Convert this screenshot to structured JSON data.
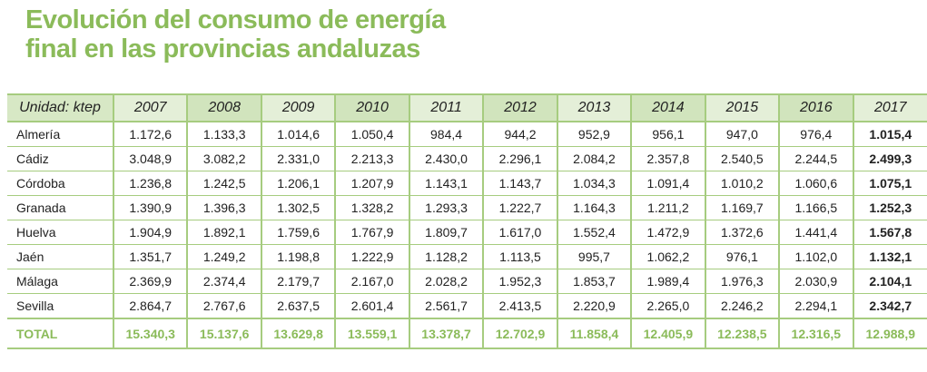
{
  "title_line1": "Evolución del consumo de energía",
  "title_line2": "final en las provincias andaluzas",
  "accent_color": "#8bbb5a",
  "table": {
    "unit_label": "Unidad: ktep",
    "years": [
      "2007",
      "2008",
      "2009",
      "2010",
      "2011",
      "2012",
      "2013",
      "2014",
      "2015",
      "2016",
      "2017"
    ],
    "rows": [
      {
        "name": "Almería",
        "values": [
          "1.172,6",
          "1.133,3",
          "1.014,6",
          "1.050,4",
          "984,4",
          "944,2",
          "952,9",
          "956,1",
          "947,0",
          "976,4",
          "1.015,4"
        ]
      },
      {
        "name": "Cádiz",
        "values": [
          "3.048,9",
          "3.082,2",
          "2.331,0",
          "2.213,3",
          "2.430,0",
          "2.296,1",
          "2.084,2",
          "2.357,8",
          "2.540,5",
          "2.244,5",
          "2.499,3"
        ]
      },
      {
        "name": "Córdoba",
        "values": [
          "1.236,8",
          "1.242,5",
          "1.206,1",
          "1.207,9",
          "1.143,1",
          "1.143,7",
          "1.034,3",
          "1.091,4",
          "1.010,2",
          "1.060,6",
          "1.075,1"
        ]
      },
      {
        "name": "Granada",
        "values": [
          "1.390,9",
          "1.396,3",
          "1.302,5",
          "1.328,2",
          "1.293,3",
          "1.222,7",
          "1.164,3",
          "1.211,2",
          "1.169,7",
          "1.166,5",
          "1.252,3"
        ]
      },
      {
        "name": "Huelva",
        "values": [
          "1.904,9",
          "1.892,1",
          "1.759,6",
          "1.767,9",
          "1.809,7",
          "1.617,0",
          "1.552,4",
          "1.472,9",
          "1.372,6",
          "1.441,4",
          "1.567,8"
        ]
      },
      {
        "name": "Jaén",
        "values": [
          "1.351,7",
          "1.249,2",
          "1.198,8",
          "1.222,9",
          "1.128,2",
          "1.113,5",
          "995,7",
          "1.062,2",
          "976,1",
          "1.102,0",
          "1.132,1"
        ]
      },
      {
        "name": "Málaga",
        "values": [
          "2.369,9",
          "2.374,4",
          "2.179,7",
          "2.167,0",
          "2.028,2",
          "1.952,3",
          "1.853,7",
          "1.989,4",
          "1.976,3",
          "2.030,9",
          "2.104,1"
        ]
      },
      {
        "name": "Sevilla",
        "values": [
          "2.864,7",
          "2.767,6",
          "2.637,5",
          "2.601,4",
          "2.561,7",
          "2.413,5",
          "2.220,9",
          "2.265,0",
          "2.246,2",
          "2.294,1",
          "2.342,7"
        ]
      }
    ],
    "total": {
      "name": "TOTAL",
      "values": [
        "15.340,3",
        "15.137,6",
        "13.629,8",
        "13.559,1",
        "13.378,7",
        "12.702,9",
        "11.858,4",
        "12.405,9",
        "12.238,5",
        "12.316,5",
        "12.988,9"
      ]
    }
  }
}
